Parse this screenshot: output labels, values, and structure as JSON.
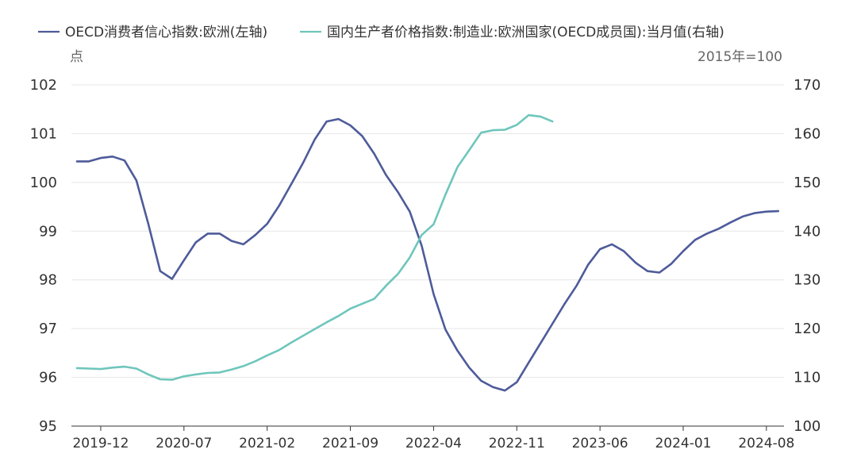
{
  "chart_data": {
    "type": "line",
    "legend": [
      {
        "name": "OECD消费者信心指数:欧洲(左轴)",
        "color": "#4e5b9a",
        "axis": "left"
      },
      {
        "name": "国内生产者价格指数:制造业:欧洲国家(OECD成员国):当月值(右轴)",
        "color": "#6fc6bc",
        "axis": "right"
      }
    ],
    "left_unit": "点",
    "right_unit": "2015年=100",
    "left_axis": {
      "min": 95,
      "max": 102,
      "ticks": [
        "95",
        "96",
        "97",
        "98",
        "99",
        "100",
        "101",
        "102"
      ]
    },
    "right_axis": {
      "min": 100,
      "max": 170,
      "ticks": [
        "100",
        "110",
        "120",
        "130",
        "140",
        "150",
        "160",
        "170"
      ]
    },
    "x_ticks": [
      "2019-12",
      "2020-07",
      "2021-02",
      "2021-09",
      "2022-04",
      "2022-11",
      "2023-06",
      "2024-01",
      "2024-08"
    ],
    "x_start": "2019-10",
    "series": [
      {
        "name": "OECD消费者信心指数:欧洲(左轴)",
        "axis": "left",
        "color": "#4e5b9a",
        "values": [
          100.43,
          100.43,
          100.5,
          100.53,
          100.45,
          100.04,
          99.15,
          98.18,
          98.02,
          98.4,
          98.77,
          98.95,
          98.95,
          98.8,
          98.73,
          98.92,
          99.15,
          99.52,
          99.95,
          100.39,
          100.88,
          101.25,
          101.3,
          101.17,
          100.95,
          100.59,
          100.15,
          99.8,
          99.4,
          98.7,
          97.71,
          96.98,
          96.55,
          96.2,
          95.93,
          95.8,
          95.73,
          95.9,
          96.3,
          96.7,
          97.1,
          97.5,
          97.87,
          98.31,
          98.63,
          98.73,
          98.59,
          98.35,
          98.18,
          98.15,
          98.33,
          98.59,
          98.82,
          98.95,
          99.05,
          99.18,
          99.3,
          99.37,
          99.4,
          99.41
        ]
      },
      {
        "name": "国内生产者价格指数:制造业:欧洲国家(OECD成员国):当月值(右轴)",
        "axis": "right",
        "color": "#6fc6bc",
        "values": [
          111.9,
          111.8,
          111.7,
          112.0,
          112.2,
          111.8,
          110.6,
          109.6,
          109.5,
          110.2,
          110.6,
          110.9,
          111.0,
          111.6,
          112.3,
          113.3,
          114.5,
          115.6,
          117.1,
          118.5,
          119.9,
          121.3,
          122.6,
          124.1,
          125.1,
          126.1,
          128.8,
          131.2,
          134.6,
          139.2,
          141.4,
          147.5,
          153.1,
          156.6,
          160.2,
          160.7,
          160.8,
          161.8,
          163.8,
          163.5,
          162.5
        ]
      }
    ]
  }
}
